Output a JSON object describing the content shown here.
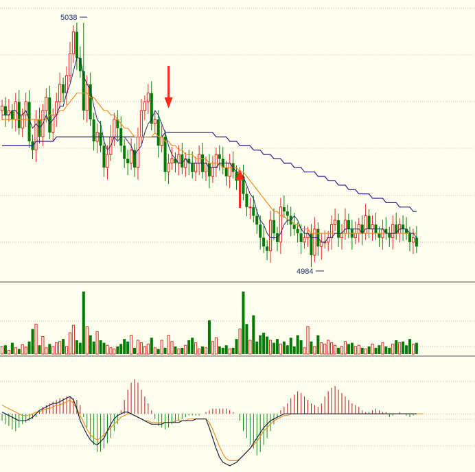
{
  "chart_data": {
    "type": "candlestick",
    "colors": {
      "background": "#FFFFF0",
      "up": "#E0261B",
      "down": "#007A00",
      "grid": "#A9A9A9",
      "ma5": "#1C2A6B",
      "ma20": "#F28C1E",
      "ma60": "#2B1E8C",
      "macd_dif": "#12233F",
      "macd_dea": "#F28C1E",
      "macd_pos": "#B8141A",
      "macd_neg": "#0E8A0E",
      "signal_arrow": "#FF2A1A"
    },
    "price": {
      "high_label": "5038",
      "low_label": "4984",
      "high": 5038,
      "low": 4984,
      "ylim": [
        4980,
        5042
      ],
      "grid": true,
      "signals": [
        {
          "type": "sell",
          "bar": 49
        },
        {
          "type": "buy",
          "bar": 70
        }
      ],
      "close": [
        5019,
        5017,
        5018,
        5016,
        5020,
        5014,
        5017,
        5020,
        5011,
        5009,
        5016,
        5012,
        5018,
        5021,
        5013,
        5017,
        5020,
        5024,
        5022,
        5026,
        5031,
        5036,
        5030,
        5027,
        5018,
        5024,
        5016,
        5011,
        5013,
        5010,
        5005,
        5008,
        5012,
        5016,
        5014,
        5010,
        5007,
        5006,
        5009,
        5005,
        5012,
        5018,
        5020,
        5022,
        5015,
        5016,
        5010,
        5012,
        5004,
        5006,
        5007,
        5006,
        5008,
        5005,
        5007,
        5006,
        5004,
        5006,
        5008,
        5004,
        5006,
        5003,
        5005,
        5008,
        5007,
        5005,
        5003,
        5006,
        5004,
        5002,
        5003,
        4999,
        4996,
        4996,
        4994,
        4992,
        4989,
        4987,
        4986,
        4993,
        4990,
        4988,
        4996,
        4995,
        4994,
        4992,
        4991,
        4990,
        4988,
        4989,
        4990,
        4985,
        4991,
        4987,
        4988,
        4988,
        4989,
        4992,
        4993,
        4989,
        4990,
        4993,
        4991,
        4989,
        4990,
        4992,
        4990,
        4994,
        4991,
        4992,
        4990,
        4989,
        4991,
        4990,
        4989,
        4992,
        4990,
        4992,
        4991,
        4990,
        4988,
        4989,
        4987
      ],
      "ma5": [
        5017,
        5017,
        5017,
        5018,
        5018,
        5017,
        5017,
        5018,
        5016,
        5014,
        5015,
        5014,
        5015,
        5017,
        5015,
        5016,
        5017,
        5019,
        5019,
        5022,
        5024,
        5027,
        5030,
        5030,
        5026,
        5024,
        5023,
        5019,
        5016,
        5015,
        5011,
        5009,
        5010,
        5012,
        5011,
        5012,
        5012,
        5011,
        5010,
        5008,
        5009,
        5010,
        5013,
        5015,
        5016,
        5018,
        5017,
        5015,
        5013,
        5010,
        5008,
        5007,
        5006,
        5006,
        5007,
        5006,
        5006,
        5006,
        5006,
        5006,
        5006,
        5005,
        5005,
        5005,
        5006,
        5006,
        5006,
        5006,
        5005,
        5004,
        5004,
        5003,
        5001,
        4999,
        4998,
        4995,
        4993,
        4992,
        4990,
        4989,
        4989,
        4989,
        4990,
        4992,
        4993,
        4993,
        4994,
        4993,
        4991,
        4990,
        4990,
        4989,
        4989,
        4989,
        4988,
        4988,
        4989,
        4989,
        4990,
        4990,
        4990,
        4991,
        4991,
        4991,
        4991,
        4991,
        4990,
        4991,
        4991,
        4991,
        4991,
        4991,
        4991,
        4990,
        4990,
        4990,
        4990,
        4991,
        4991,
        4991,
        4990,
        4990,
        4989
      ],
      "ma20": [
        5016,
        5016,
        5016,
        5016,
        5016,
        5016,
        5016,
        5016,
        5016,
        5016,
        5016,
        5016,
        5016,
        5016,
        5017,
        5017,
        5017,
        5018,
        5018,
        5019,
        5020,
        5021,
        5022,
        5022,
        5022,
        5022,
        5021,
        5021,
        5020,
        5019,
        5018,
        5018,
        5017,
        5017,
        5016,
        5015,
        5014,
        5014,
        5013,
        5012,
        5012,
        5012,
        5012,
        5012,
        5012,
        5013,
        5012,
        5012,
        5011,
        5011,
        5010,
        5010,
        5009,
        5009,
        5008,
        5008,
        5008,
        5007,
        5007,
        5007,
        5007,
        5006,
        5006,
        5006,
        5006,
        5005,
        5005,
        5005,
        5005,
        5005,
        5004,
        5004,
        5003,
        5002,
        5001,
        5000,
        4999,
        4998,
        4997,
        4996,
        4995,
        4995,
        4994,
        4994,
        4993,
        4993,
        4992,
        4992,
        4991,
        4991,
        4991,
        4990,
        4990,
        4990,
        4990,
        4990,
        4990,
        4990,
        4990,
        4990,
        4990,
        4990,
        4990,
        4990,
        4990,
        4990,
        4990,
        4990,
        4990,
        4990,
        4990,
        4990,
        4990,
        4990,
        4990,
        4990,
        4990,
        4990,
        4990,
        4990,
        4990,
        4990,
        4990
      ],
      "ma60": [
        5010,
        5010,
        5010,
        5010,
        5010,
        5010,
        5010,
        5010,
        5010,
        5010,
        5011,
        5011,
        5011,
        5011,
        5011,
        5011,
        5012,
        5012,
        5012,
        5012,
        5012,
        5012,
        5012,
        5012,
        5012,
        5012,
        5012,
        5012,
        5012,
        5012,
        5012,
        5012,
        5012,
        5012,
        5012,
        5012,
        5012,
        5012,
        5012,
        5012,
        5012,
        5012,
        5012,
        5012,
        5012,
        5012,
        5012,
        5012,
        5013,
        5013,
        5013,
        5013,
        5013,
        5013,
        5013,
        5013,
        5013,
        5013,
        5013,
        5013,
        5013,
        5013,
        5013,
        5012,
        5012,
        5012,
        5012,
        5011,
        5011,
        5011,
        5010,
        5010,
        5010,
        5010,
        5009,
        5009,
        5009,
        5008,
        5008,
        5008,
        5007,
        5007,
        5007,
        5006,
        5006,
        5006,
        5005,
        5005,
        5005,
        5004,
        5004,
        5004,
        5004,
        5003,
        5003,
        5003,
        5002,
        5002,
        5002,
        5001,
        5001,
        5001,
        5000,
        5000,
        5000,
        4999,
        4999,
        4999,
        4999,
        4998,
        4998,
        4998,
        4998,
        4997,
        4997,
        4997,
        4997,
        4996,
        4996,
        4996,
        4996,
        4995,
        4995
      ]
    },
    "volume": {
      "ylim": [
        0,
        100
      ],
      "grid": true,
      "values": [
        12,
        14,
        6,
        18,
        10,
        8,
        15,
        11,
        20,
        40,
        48,
        14,
        28,
        10,
        16,
        12,
        18,
        20,
        24,
        12,
        34,
        46,
        22,
        18,
        100,
        44,
        30,
        20,
        36,
        22,
        18,
        14,
        10,
        8,
        12,
        16,
        24,
        20,
        30,
        10,
        22,
        18,
        12,
        16,
        26,
        10,
        8,
        22,
        10,
        30,
        20,
        12,
        8,
        10,
        14,
        22,
        26,
        18,
        8,
        12,
        10,
        54,
        20,
        26,
        12,
        10,
        14,
        8,
        10,
        24,
        40,
        100,
        48,
        22,
        62,
        20,
        30,
        34,
        28,
        22,
        18,
        24,
        16,
        20,
        14,
        26,
        12,
        30,
        22,
        10,
        44,
        20,
        12,
        30,
        18,
        16,
        22,
        18,
        14,
        10,
        12,
        20,
        16,
        18,
        12,
        14,
        10,
        8,
        12,
        16,
        10,
        14,
        18,
        12,
        10,
        16,
        22,
        18,
        20,
        14,
        24,
        16,
        18
      ]
    },
    "macd": {
      "ylim": [
        -32,
        25
      ],
      "grid": true,
      "hist": [
        -4,
        -6,
        -7,
        -9,
        -10,
        -8,
        -6,
        -5,
        -4,
        -3,
        -2,
        2,
        4,
        5,
        6,
        7,
        8,
        9,
        9,
        10,
        10,
        9,
        8,
        5,
        -2,
        -8,
        -14,
        -18,
        -22,
        -22,
        -20,
        -17,
        -14,
        -10,
        -6,
        2,
        8,
        14,
        18,
        20,
        18,
        14,
        10,
        6,
        2,
        -3,
        -7,
        -8,
        -9,
        -8,
        -6,
        -5,
        -4,
        -3,
        -2,
        -1,
        -1,
        -1,
        -1,
        0,
        1,
        2,
        3,
        3,
        3,
        3,
        3,
        2,
        1,
        0,
        -4,
        -10,
        -14,
        -18,
        -20,
        -24,
        -22,
        -18,
        -14,
        -10,
        -6,
        -2,
        2,
        4,
        6,
        9,
        11,
        13,
        12,
        10,
        8,
        6,
        5,
        4,
        6,
        10,
        13,
        15,
        16,
        14,
        12,
        10,
        8,
        6,
        5,
        4,
        2,
        1,
        1,
        2,
        3,
        2,
        1,
        1,
        -2,
        -1,
        0,
        1,
        0,
        -1,
        -2,
        -1,
        0,
        1,
        -1
      ],
      "dif": [
        1,
        0,
        -1,
        -2,
        -3,
        -4,
        -4,
        -4,
        -3,
        -2,
        0,
        2,
        3,
        4,
        5,
        6,
        6,
        7,
        8,
        9,
        10,
        8,
        3,
        -4,
        -8,
        -12,
        -15,
        -17,
        -18,
        -16,
        -14,
        -10,
        -6,
        -3,
        -1,
        0,
        1,
        1,
        0,
        -1,
        -2,
        -3,
        -4,
        -5,
        -6,
        -6,
        -6,
        -6,
        -5,
        -5,
        -5,
        -5,
        -5,
        -4,
        -4,
        -4,
        -4,
        -3,
        -3,
        -3,
        -3,
        -8,
        -14,
        -20,
        -25,
        -28,
        -29,
        -30,
        -29,
        -28,
        -26,
        -24,
        -22,
        -20,
        -17,
        -14,
        -11,
        -8,
        -6,
        -4,
        -3,
        -2,
        -1,
        0,
        0,
        0,
        0,
        0,
        0,
        0,
        0,
        0,
        0,
        0,
        0,
        0,
        0,
        0,
        0,
        0,
        0,
        0,
        0,
        0,
        0,
        0,
        0,
        0,
        0,
        0,
        0,
        0,
        0,
        0,
        0,
        0,
        0,
        0,
        0,
        0,
        0,
        0,
        0
      ],
      "dea": [
        5,
        4,
        3,
        2,
        1,
        0,
        -1,
        -1,
        -1,
        0,
        1,
        1,
        2,
        3,
        3,
        4,
        5,
        5,
        6,
        7,
        8,
        6,
        3,
        -1,
        -5,
        -9,
        -12,
        -14,
        -15,
        -14,
        -12,
        -10,
        -8,
        -6,
        -4,
        -2,
        -1,
        0,
        0,
        -1,
        -2,
        -3,
        -4,
        -4,
        -5,
        -5,
        -5,
        -5,
        -5,
        -5,
        -5,
        -4,
        -4,
        -4,
        -4,
        -3,
        -3,
        -3,
        -3,
        -3,
        -3,
        -5,
        -9,
        -14,
        -19,
        -23,
        -26,
        -27,
        -27,
        -27,
        -26,
        -24,
        -22,
        -20,
        -18,
        -16,
        -13,
        -10,
        -8,
        -6,
        -4,
        -3,
        -2,
        -1,
        -1,
        0,
        0,
        0,
        0,
        0,
        0,
        0,
        0,
        0,
        0,
        0,
        0,
        0,
        0,
        0,
        0,
        0,
        0,
        0,
        0,
        0,
        0,
        0,
        0,
        0,
        0,
        0,
        0,
        0,
        0,
        0,
        0,
        0,
        0,
        0,
        0,
        0,
        0,
        0,
        0
      ]
    }
  }
}
